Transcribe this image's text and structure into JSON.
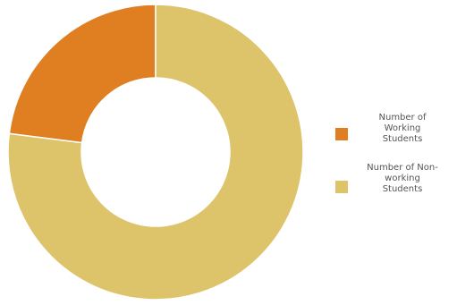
{
  "chart_data": {
    "type": "pie",
    "variant": "donut",
    "categories": [
      {
        "label": "Number of Working Students",
        "value": 23,
        "color": "#E07F22"
      },
      {
        "label": "Number of Non-working Students",
        "value": 77,
        "color": "#DDC46A"
      }
    ],
    "legend": {
      "position": "right",
      "items": [
        {
          "lines": [
            "Number of",
            "Working",
            "Students"
          ],
          "color": "#E07F22"
        },
        {
          "lines": [
            "Number of Non-",
            "working",
            "Students"
          ],
          "color": "#DDC46A"
        }
      ]
    },
    "title": ""
  }
}
